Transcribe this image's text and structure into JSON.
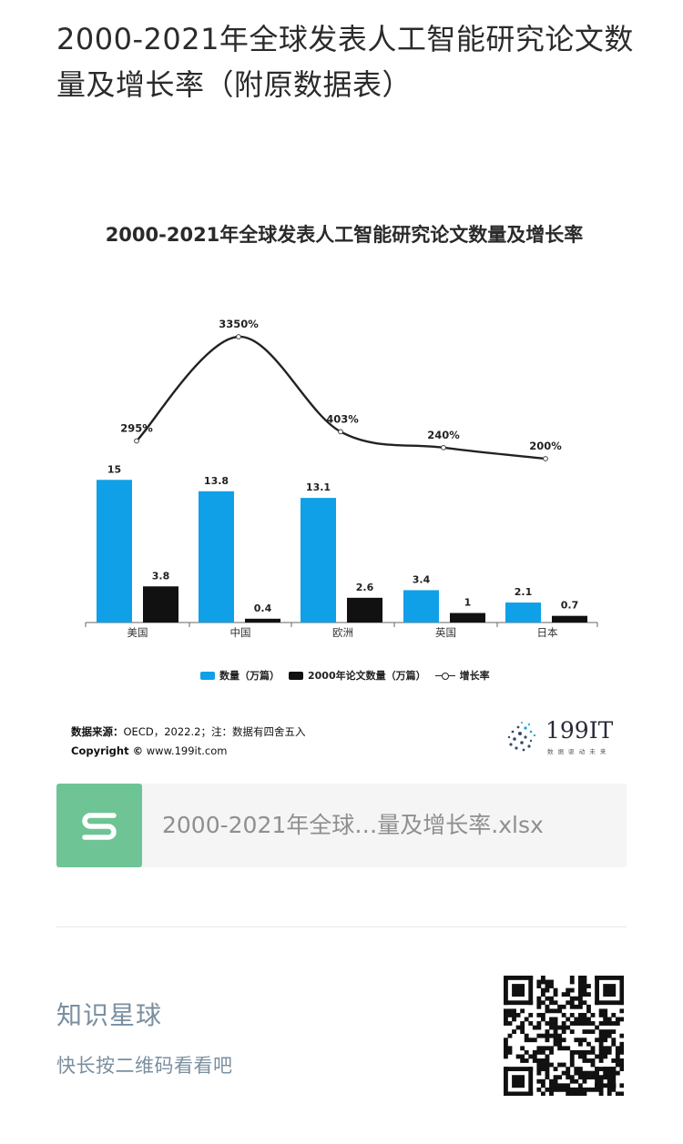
{
  "post": {
    "title": "2000-2021年全球发表人工智能研究论文数量及增长率（附原数据表）"
  },
  "chart": {
    "title": "2000-2021年全球发表人工智能研究论文数量及增长率",
    "legend": {
      "s1": "数量（万篇）",
      "s2": "2000年论文数量（万篇）",
      "s3": "增长率"
    },
    "source_label": "数据来源：",
    "source_text": "OECD，2022.2；注：数据有四舍五入",
    "copyright_label": "Copyright ©",
    "copyright_text": "www.199it.com",
    "brand": "199IT",
    "brand_sub": "数 据 驱 动 未 来"
  },
  "chart_data": {
    "type": "bar",
    "title": "2000-2021年全球发表人工智能研究论文数量及增长率",
    "categories": [
      "美国",
      "中国",
      "欧洲",
      "英国",
      "日本"
    ],
    "series": [
      {
        "name": "数量（万篇）",
        "type": "bar",
        "color": "#10a0e8",
        "values": [
          15,
          13.8,
          13.1,
          3.4,
          2.1
        ],
        "labels": [
          "15",
          "13.8",
          "13.1",
          "3.4",
          "2.1"
        ]
      },
      {
        "name": "2000年论文数量（万篇）",
        "type": "bar",
        "color": "#111111",
        "values": [
          3.8,
          0.4,
          2.6,
          1,
          0.7
        ],
        "labels": [
          "3.8",
          "0.4",
          "2.6",
          "1",
          "0.7"
        ]
      },
      {
        "name": "增长率",
        "type": "line",
        "color": "#222222",
        "values": [
          295,
          3350,
          403,
          240,
          200
        ],
        "labels": [
          "295%",
          "3350%",
          "403%",
          "240%",
          "200%"
        ]
      }
    ],
    "ylim": [
      0,
      15
    ],
    "grid": false,
    "legend_position": "bottom"
  },
  "file": {
    "icon": "spreadsheet-s-icon",
    "name": "2000-2021年全球…量及增长率.xlsx",
    "color": "#6ec495"
  },
  "planet": {
    "title": "知识星球",
    "subtitle": "快长按二维码看看吧"
  }
}
